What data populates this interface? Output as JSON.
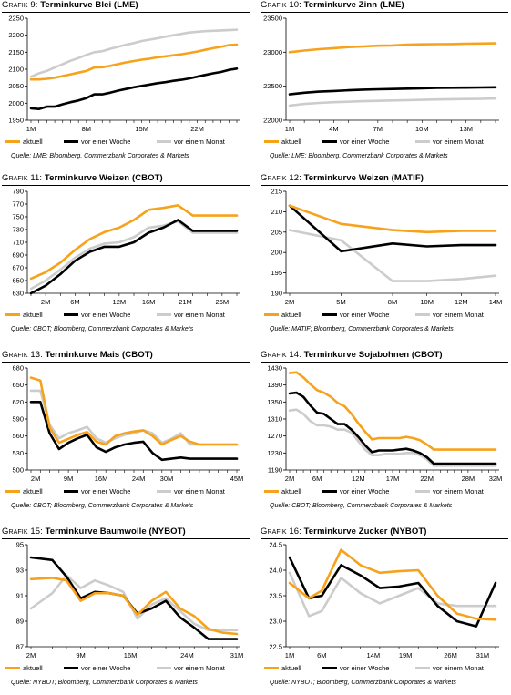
{
  "colors": {
    "aktuell": "#F7A21B",
    "woche": "#000000",
    "monat": "#CCCCCC"
  },
  "legend": {
    "aktuell": "aktuell",
    "woche": "vor einer Woche",
    "monat": "vor einem Monat"
  },
  "charts": [
    {
      "prefix": "Grafik 9:",
      "name": "Terminkurve Blei (LME)",
      "source": "Quelle: LME; Bloomberg, Commerzbank Corporates & Markets",
      "chart_data": {
        "type": "line",
        "x": [
          1,
          2,
          3,
          4,
          5,
          6,
          7,
          8,
          9,
          10,
          11,
          12,
          13,
          14,
          15,
          16,
          17,
          18,
          19,
          20,
          21,
          22,
          23,
          24,
          25,
          26,
          27
        ],
        "xticks": [
          "1M",
          "8M",
          "15M",
          "22M"
        ],
        "xtick_pos": [
          1,
          8,
          15,
          22
        ],
        "ylim": [
          1950,
          2250
        ],
        "yticks": [
          "1950",
          "2000",
          "2050",
          "2100",
          "2150",
          "2200",
          "2250"
        ],
        "series": [
          {
            "name": "aktuell",
            "values": [
              2070,
              2070,
              2072,
              2075,
              2080,
              2085,
              2090,
              2095,
              2105,
              2106,
              2110,
              2115,
              2120,
              2124,
              2128,
              2131,
              2135,
              2138,
              2141,
              2144,
              2148,
              2152,
              2157,
              2162,
              2166,
              2171,
              2172
            ]
          },
          {
            "name": "vor einer Woche",
            "values": [
              1985,
              1983,
              1990,
              1990,
              1997,
              2003,
              2008,
              2015,
              2026,
              2026,
              2031,
              2037,
              2042,
              2047,
              2051,
              2055,
              2059,
              2062,
              2066,
              2069,
              2073,
              2078,
              2083,
              2088,
              2092,
              2098,
              2102
            ]
          },
          {
            "name": "vor einem Monat",
            "values": [
              2078,
              2088,
              2095,
              2105,
              2115,
              2125,
              2133,
              2142,
              2150,
              2153,
              2160,
              2166,
              2172,
              2177,
              2183,
              2187,
              2191,
              2196,
              2200,
              2204,
              2208,
              2210,
              2212,
              2213,
              2214,
              2215,
              2216
            ]
          }
        ]
      }
    },
    {
      "prefix": "Grafik 10:",
      "name": "Terminkurve Zinn (LME)",
      "source": "Quelle: LME; Bloomberg, Commerzbank Corporates & Markets",
      "chart_data": {
        "type": "line",
        "x": [
          1,
          2,
          3,
          4,
          5,
          6,
          7,
          8,
          9,
          10,
          11,
          12,
          13,
          14,
          15
        ],
        "xticks": [
          "1M",
          "4M",
          "7M",
          "10M",
          "13M"
        ],
        "xtick_pos": [
          1,
          4,
          7,
          10,
          13
        ],
        "ylim": [
          22000,
          23500
        ],
        "yticks": [
          "22000",
          "22500",
          "23000",
          "23500"
        ],
        "series": [
          {
            "name": "aktuell",
            "values": [
              23000,
              23025,
              23045,
              23060,
              23075,
              23085,
              23095,
              23100,
              23110,
              23115,
              23118,
              23120,
              23125,
              23128,
              23130
            ]
          },
          {
            "name": "vor einer Woche",
            "values": [
              22380,
              22405,
              22420,
              22430,
              22440,
              22450,
              22455,
              22460,
              22465,
              22470,
              22475,
              22478,
              22480,
              22482,
              22485
            ]
          },
          {
            "name": "vor einem Monat",
            "values": [
              22215,
              22240,
              22255,
              22265,
              22272,
              22280,
              22285,
              22290,
              22295,
              22300,
              22305,
              22310,
              22312,
              22315,
              22320
            ]
          }
        ]
      }
    },
    {
      "prefix": "Grafik 11:",
      "name": "Terminkurve Weizen (CBOT)",
      "source": "Quelle: CBOT; Bloomberg, Commerzbank Corporates & Markets",
      "chart_data": {
        "type": "line",
        "x": [
          0,
          2,
          4,
          6,
          8,
          10,
          12,
          14,
          16,
          18,
          20,
          22,
          24,
          26,
          28
        ],
        "xticks": [
          "2M",
          "6M",
          "12M",
          "16M",
          "21M",
          "26M"
        ],
        "xtick_pos": [
          2,
          6,
          12,
          16,
          21,
          26
        ],
        "ylim": [
          630,
          790
        ],
        "yticks": [
          "630",
          "650",
          "670",
          "690",
          "710",
          "730",
          "750",
          "770",
          "790"
        ],
        "series": [
          {
            "name": "aktuell",
            "values": [
              653,
              663,
              678,
              698,
              715,
              726,
              733,
              745,
              761,
              764,
              768,
              752,
              752,
              752,
              752
            ]
          },
          {
            "name": "vor einer Woche",
            "values": [
              630,
              642,
              660,
              681,
              695,
              703,
              703,
              710,
              725,
              733,
              745,
              728,
              728,
              728,
              728
            ]
          },
          {
            "name": "vor einem Monat",
            "values": [
              637,
              650,
              667,
              686,
              700,
              708,
              710,
              718,
              733,
              736,
              743,
              725,
              725,
              725,
              725
            ]
          }
        ]
      }
    },
    {
      "prefix": "Grafik 12:",
      "name": "Terminkurve Weizen (MATIF)",
      "source": "Quelle: MATIF; Bloomberg, Commerzbank Corporates & Markets",
      "chart_data": {
        "type": "line",
        "x": [
          2,
          5,
          8,
          10,
          12,
          14
        ],
        "xticks": [
          "2M",
          "5M",
          "8M",
          "10M",
          "12M",
          "14M"
        ],
        "xtick_pos": [
          2,
          5,
          8,
          10,
          12,
          14
        ],
        "ylim": [
          190,
          215
        ],
        "yticks": [
          "190",
          "195",
          "200",
          "205",
          "210",
          "215"
        ],
        "series": [
          {
            "name": "aktuell",
            "values": [
              211.5,
              207.0,
              205.5,
              205.0,
              205.3,
              205.3
            ]
          },
          {
            "name": "vor einer Woche",
            "values": [
              211.5,
              200.3,
              202.2,
              201.5,
              201.8,
              201.8
            ]
          },
          {
            "name": "vor einem Monat",
            "values": [
              205.5,
              203.0,
              193.0,
              193.0,
              193.5,
              194.3
            ]
          }
        ]
      }
    },
    {
      "prefix": "Grafik 13:",
      "name": "Terminkurve Mais (CBOT)",
      "source": "Quelle: CBOT; Bloomberg, Commerzbank Corporates & Markets",
      "chart_data": {
        "type": "line",
        "x": [
          1,
          3,
          5,
          7,
          9,
          11,
          13,
          15,
          17,
          19,
          21,
          23,
          25,
          27,
          29,
          31,
          33,
          35,
          37,
          39,
          41,
          43,
          45
        ],
        "xticks": [
          "2M",
          "9M",
          "16M",
          "24M",
          "30M",
          "45M"
        ],
        "xtick_pos": [
          2,
          9,
          16,
          24,
          30,
          45
        ],
        "ylim": [
          500,
          680
        ],
        "yticks": [
          "500",
          "530",
          "560",
          "590",
          "620",
          "650",
          "680"
        ],
        "series": [
          {
            "name": "aktuell",
            "values": [
              663,
              658,
              575,
              548,
              555,
              562,
              567,
              550,
              545,
              560,
              565,
              568,
              570,
              560,
              545,
              553,
              560,
              550,
              545,
              545,
              545,
              545,
              545
            ]
          },
          {
            "name": "vor einer Woche",
            "values": [
              620,
              620,
              565,
              537,
              548,
              556,
              562,
              540,
              532,
              540,
              545,
              548,
              550,
              530,
              518,
              520,
              522,
              520,
              520,
              520,
              520,
              520,
              520
            ]
          },
          {
            "name": "vor einem Monat",
            "values": [
              640,
              640,
              580,
              556,
              565,
              570,
              576,
              556,
              548,
              556,
              562,
              565,
              570,
              565,
              548,
              555,
              565,
              545,
              545,
              545,
              545,
              545,
              545
            ]
          }
        ]
      }
    },
    {
      "prefix": "Grafik 14:",
      "name": "Terminkurve Sojabohnen (CBOT)",
      "source": "Quelle: CBOT; Bloomberg, Commerzbank Corporates & Markets",
      "chart_data": {
        "type": "line",
        "x": [
          2,
          3,
          4,
          5,
          6,
          7,
          8,
          9,
          10,
          11,
          12,
          13,
          14,
          15,
          16,
          17,
          18,
          19,
          20,
          21,
          22,
          23,
          24,
          25,
          26,
          27,
          28,
          29,
          30,
          31,
          32
        ],
        "xticks": [
          "2M",
          "6M",
          "12M",
          "17M",
          "22M",
          "28M",
          "32M"
        ],
        "xtick_pos": [
          2,
          6,
          12,
          17,
          22,
          28,
          32
        ],
        "ylim": [
          1190,
          1430
        ],
        "yticks": [
          "1190",
          "1230",
          "1270",
          "1310",
          "1350",
          "1390",
          "1430"
        ],
        "series": [
          {
            "name": "aktuell",
            "values": [
              1418,
              1420,
              1408,
              1392,
              1378,
              1372,
              1362,
              1348,
              1340,
              1322,
              1300,
              1280,
              1262,
              1265,
              1265,
              1265,
              1265,
              1268,
              1265,
              1260,
              1250,
              1238,
              1238,
              1238,
              1238,
              1238,
              1238,
              1238,
              1238,
              1238,
              1238
            ]
          },
          {
            "name": "vor einer Woche",
            "values": [
              1370,
              1372,
              1362,
              1342,
              1325,
              1322,
              1310,
              1298,
              1298,
              1285,
              1268,
              1248,
              1232,
              1236,
              1236,
              1236,
              1238,
              1240,
              1236,
              1230,
              1220,
              1205,
              1205,
              1205,
              1205,
              1205,
              1205,
              1205,
              1205,
              1205,
              1205
            ]
          },
          {
            "name": "vor einem Monat",
            "values": [
              1330,
              1332,
              1322,
              1305,
              1295,
              1295,
              1292,
              1285,
              1285,
              1278,
              1258,
              1238,
              1225,
              1225,
              1228,
              1228,
              1228,
              1230,
              1230,
              1225,
              1215,
              1200,
              1200,
              1200,
              1200,
              1200,
              1200,
              1200,
              1200,
              1200,
              1200
            ]
          }
        ]
      }
    },
    {
      "prefix": "Grafik 15:",
      "name": "Terminkurve Baumwolle (NYBOT)",
      "source": "Quelle: NYBOT; Bloomberg, Commerzbank Corporates & Markets",
      "chart_data": {
        "type": "line",
        "x": [
          2,
          5,
          7,
          9,
          11,
          13,
          15,
          17,
          19,
          21,
          23,
          25,
          27,
          29,
          31
        ],
        "xticks": [
          "2M",
          "9M",
          "16M",
          "24M",
          "31M"
        ],
        "xtick_pos": [
          2,
          9,
          16,
          24,
          31
        ],
        "ylim": [
          87,
          95
        ],
        "yticks": [
          "87",
          "89",
          "91",
          "93",
          "95"
        ],
        "series": [
          {
            "name": "aktuell",
            "values": [
              92.3,
              92.4,
              92.2,
              90.6,
              91.2,
              91.2,
              91.0,
              89.5,
              90.6,
              91.3,
              90.0,
              89.4,
              88.4,
              88.1,
              88.0
            ]
          },
          {
            "name": "vor einer Woche",
            "values": [
              94.0,
              93.8,
              92.5,
              90.8,
              91.3,
              91.2,
              91.0,
              89.6,
              90.0,
              90.6,
              89.3,
              88.5,
              87.6,
              87.6,
              87.6
            ]
          },
          {
            "name": "vor einem Monat",
            "values": [
              90.0,
              91.2,
              92.6,
              91.6,
              92.2,
              91.8,
              91.3,
              89.2,
              90.3,
              90.8,
              89.8,
              88.8,
              88.3,
              88.3,
              88.3
            ]
          }
        ]
      }
    },
    {
      "prefix": "Grafik 16:",
      "name": "Terminkurve Zucker (NYBOT)",
      "source": "Quelle: NYBOT; Bloomberg, Commerzbank Corporates & Markets",
      "chart_data": {
        "type": "line",
        "x": [
          1,
          4,
          6,
          9,
          12,
          15,
          18,
          21,
          24,
          27,
          30,
          33
        ],
        "xticks": [
          "1M",
          "6M",
          "14M",
          "19M",
          "26M",
          "31M"
        ],
        "xtick_pos": [
          1,
          6,
          14,
          19,
          26,
          31
        ],
        "ylim": [
          22.5,
          24.5
        ],
        "yticks": [
          "22.5",
          "23.0",
          "23.5",
          "24.0",
          "24.5"
        ],
        "series": [
          {
            "name": "aktuell",
            "values": [
              23.75,
              23.45,
              23.6,
              24.4,
              24.1,
              23.95,
              23.98,
              24.0,
              23.5,
              23.15,
              23.05,
              23.03
            ]
          },
          {
            "name": "vor einer Woche",
            "values": [
              24.25,
              23.45,
              23.5,
              24.1,
              23.9,
              23.65,
              23.68,
              23.75,
              23.3,
              23.0,
              22.9,
              23.75
            ]
          },
          {
            "name": "vor einem Monat",
            "values": [
              23.95,
              23.1,
              23.2,
              23.85,
              23.55,
              23.35,
              23.5,
              23.65,
              23.35,
              23.3,
              23.3,
              23.3
            ]
          }
        ]
      }
    }
  ]
}
